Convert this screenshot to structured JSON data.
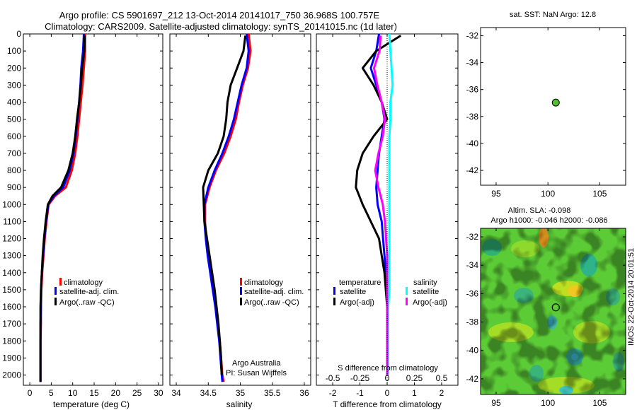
{
  "header": {
    "title_line1": "Argo profile: CS 5901697_212 13-Oct-2014 20141017_750 36.968S 100.757E",
    "title_line2": "Climatology: CARS2009. Satellite-adjusted climatology: synTS_20141015.nc (1d later)"
  },
  "colors": {
    "climatology": "#ff0000",
    "satellite": "#0000ff",
    "argo": "#000000",
    "salinity_satellite": "#00ffff",
    "salinity_argo": "#ff00ff",
    "float_marker": "#4fc12a"
  },
  "depth_axis": {
    "ticks": [
      0,
      100,
      200,
      300,
      400,
      500,
      600,
      700,
      800,
      900,
      1000,
      1100,
      1200,
      1300,
      1400,
      1500,
      1600,
      1700,
      1800,
      1900,
      2000
    ],
    "lim": [
      0,
      2060
    ]
  },
  "panels": {
    "temperature": {
      "xlabel": "temperature (deg C)",
      "xticks": [
        "0",
        "5",
        "10",
        "15",
        "20",
        "25",
        "30"
      ],
      "legend": [
        "climatology",
        "satellite-adj. clim.",
        "Argo(..raw -QC)"
      ]
    },
    "salinity": {
      "xlabel": "salinity",
      "xticks": [
        "34",
        "34.5",
        "35",
        "35.5",
        "36"
      ],
      "legend": [
        "climatology",
        "satellite-adj. clim.",
        "Argo(..raw -QC)"
      ],
      "note_line1": "Argo Australia",
      "note_line2": "PI: Susan Wijffels"
    },
    "difference": {
      "xlabel": "T difference from climatology",
      "top_label": "S difference from climatology",
      "xticks_T": [
        "-2",
        "-1",
        "0",
        "1",
        "2"
      ],
      "xticks_S": [
        "-0.5",
        "-0.25",
        "0",
        "0.25",
        "0.5"
      ],
      "legend_temp_heading": "temperature",
      "legend_sal_heading": "salinity",
      "legend_temp": [
        "satellite",
        "Argo(-adj)"
      ],
      "legend_sal": [
        "satellite",
        "Argo(-adj)"
      ]
    },
    "sst_map": {
      "title": "sat. SST: NaN Argo: 12.8",
      "yticks": [
        "-32",
        "-34",
        "-36",
        "-38",
        "-40",
        "-42"
      ],
      "xticks": [
        "95",
        "100",
        "105"
      ]
    },
    "sla_map": {
      "title_line1": "Altim. SLA: -0.098",
      "title_line2": "Argo h1000: -0.046 h2000: -0.086",
      "yticks": [
        "-32",
        "-34",
        "-36",
        "-38",
        "-40",
        "-42"
      ],
      "xticks": [
        "95",
        "100",
        "105"
      ],
      "credit": "IMOS 22-Oct-2014 20:01:51"
    }
  },
  "chart_data": [
    {
      "type": "line",
      "title": "",
      "xlabel": "temperature (deg C)",
      "ylabel": "",
      "xlim": [
        -1.5,
        31
      ],
      "ylim": [
        2060,
        0
      ],
      "series": [
        {
          "name": "climatology",
          "color": "#ff0000",
          "x": [
            12.9,
            12.9,
            12.6,
            12.3,
            11.9,
            11.5,
            11.1,
            10.6,
            9.8,
            8.4,
            5.9,
            4.4,
            3.9,
            3.5,
            3.2,
            2.9,
            2.7,
            2.6,
            2.6,
            2.5,
            2.5,
            2.5
          ],
          "y": [
            0,
            100,
            200,
            300,
            400,
            500,
            600,
            700,
            800,
            900,
            950,
            1000,
            1100,
            1200,
            1300,
            1400,
            1500,
            1600,
            1700,
            1800,
            1900,
            2040
          ]
        },
        {
          "name": "satellite-adj. clim.",
          "color": "#0000ff",
          "x": [
            12.6,
            12.4,
            12.0,
            11.8,
            11.5,
            11.1,
            10.7,
            10.2,
            9.3,
            7.8,
            5.6,
            4.3,
            3.8,
            3.4,
            3.1,
            2.8,
            2.6,
            2.6,
            2.5,
            2.5,
            2.5,
            2.5
          ],
          "y": [
            0,
            100,
            200,
            300,
            400,
            500,
            600,
            700,
            800,
            900,
            950,
            1000,
            1100,
            1200,
            1300,
            1400,
            1500,
            1600,
            1700,
            1800,
            1900,
            2040
          ]
        },
        {
          "name": "Argo(..raw -QC)",
          "color": "#000000",
          "x": [
            12.8,
            12.7,
            12.2,
            11.9,
            11.5,
            11.0,
            10.6,
            10.0,
            9.0,
            7.3,
            5.3,
            4.2,
            3.7,
            3.3,
            3.0,
            2.8,
            2.6,
            2.5,
            2.5,
            2.5,
            2.5,
            2.5
          ],
          "y": [
            10,
            100,
            200,
            300,
            400,
            500,
            600,
            700,
            800,
            900,
            950,
            1000,
            1100,
            1200,
            1300,
            1400,
            1500,
            1600,
            1700,
            1800,
            1900,
            2040
          ]
        }
      ]
    },
    {
      "type": "line",
      "title": "",
      "xlabel": "salinity",
      "ylabel": "",
      "xlim": [
        33.9,
        36.1
      ],
      "ylim": [
        2060,
        0
      ],
      "series": [
        {
          "name": "climatology",
          "color": "#ff0000",
          "x": [
            35.13,
            35.16,
            35.12,
            35.04,
            34.98,
            34.93,
            34.85,
            34.75,
            34.62,
            34.52,
            34.45,
            34.45,
            34.47,
            34.5,
            34.54,
            34.58,
            34.62,
            34.65,
            34.68,
            34.7,
            34.72,
            34.74
          ],
          "y": [
            0,
            100,
            200,
            300,
            400,
            500,
            600,
            700,
            800,
            900,
            1000,
            1100,
            1200,
            1300,
            1400,
            1500,
            1600,
            1700,
            1800,
            1900,
            2000,
            2040
          ]
        },
        {
          "name": "satellite-adj. clim.",
          "color": "#0000ff",
          "x": [
            35.1,
            35.13,
            35.1,
            35.02,
            34.96,
            34.9,
            34.82,
            34.72,
            34.6,
            34.5,
            34.44,
            34.44,
            34.46,
            34.49,
            34.53,
            34.57,
            34.61,
            34.64,
            34.67,
            34.69,
            34.71,
            34.72
          ],
          "y": [
            0,
            100,
            200,
            300,
            400,
            500,
            600,
            700,
            800,
            900,
            1000,
            1100,
            1200,
            1300,
            1400,
            1500,
            1600,
            1700,
            1800,
            1900,
            2000,
            2040
          ]
        },
        {
          "name": "Argo(..raw -QC)",
          "color": "#000000",
          "x": [
            35.08,
            35.05,
            34.95,
            34.85,
            34.8,
            34.78,
            34.74,
            34.65,
            34.5,
            34.42,
            34.43,
            34.44,
            34.48,
            34.52,
            34.56,
            34.6,
            34.63,
            34.66,
            34.68,
            34.7,
            34.71
          ],
          "y": [
            10,
            100,
            200,
            300,
            400,
            500,
            600,
            700,
            800,
            900,
            1000,
            1100,
            1200,
            1300,
            1400,
            1500,
            1600,
            1700,
            1800,
            1900,
            2000
          ]
        }
      ]
    },
    {
      "type": "line",
      "title": "",
      "xlabel": "T difference from climatology",
      "ylabel": "",
      "xlim": [
        -2.6,
        2.6
      ],
      "ylim": [
        2060,
        0
      ],
      "series": [
        {
          "name": "temperature satellite",
          "color": "#0000ff",
          "x": [
            -0.3,
            -0.4,
            -0.6,
            -0.4,
            -0.2,
            -0.1,
            -0.2,
            -0.3,
            -0.35,
            -0.4,
            -0.35,
            -0.2,
            -0.15,
            -0.1,
            -0.05,
            0,
            0,
            0,
            0,
            0,
            0
          ],
          "y": [
            0,
            100,
            200,
            300,
            400,
            500,
            600,
            700,
            800,
            900,
            1000,
            1100,
            1200,
            1300,
            1400,
            1500,
            1600,
            1700,
            1800,
            1900,
            2000
          ]
        },
        {
          "name": "temperature Argo(-adj)",
          "color": "#000000",
          "x": [
            0.5,
            -0.4,
            -0.9,
            -0.5,
            -0.2,
            0,
            -0.5,
            -0.9,
            -1.1,
            -1.15,
            -0.9,
            -0.6,
            -0.3,
            -0.2,
            -0.1,
            -0.05,
            0,
            0,
            0,
            0,
            0
          ],
          "y": [
            10,
            100,
            200,
            300,
            400,
            500,
            600,
            700,
            800,
            900,
            1000,
            1100,
            1200,
            1300,
            1400,
            1500,
            1600,
            1700,
            1800,
            1900,
            2000
          ]
        },
        {
          "name": "salinity satellite",
          "color": "#00ffff",
          "x": [
            0.02,
            0.03,
            0.04,
            0.05,
            0.03,
            0.03,
            0.02,
            0.02,
            0.02,
            0.02,
            0.02,
            0.02,
            0.02,
            0.02,
            0.02,
            0.02,
            0.01,
            0.01,
            0.01,
            0.01,
            0.01
          ],
          "y": [
            0,
            100,
            200,
            300,
            400,
            500,
            600,
            700,
            800,
            900,
            1000,
            1100,
            1200,
            1300,
            1400,
            1500,
            1600,
            1700,
            1800,
            1900,
            2000
          ]
        },
        {
          "name": "salinity Argo(-adj)",
          "color": "#ff00ff",
          "x": [
            -0.06,
            -0.07,
            -0.12,
            -0.09,
            -0.05,
            -0.02,
            -0.04,
            -0.08,
            -0.11,
            -0.08,
            -0.04,
            -0.02,
            -0.01,
            0,
            0,
            0,
            0,
            0,
            0,
            0,
            0
          ],
          "y": [
            10,
            100,
            200,
            300,
            400,
            500,
            600,
            700,
            800,
            900,
            1000,
            1100,
            1200,
            1300,
            1400,
            1500,
            1600,
            1700,
            1800,
            1900,
            2000
          ]
        }
      ]
    },
    {
      "type": "scatter",
      "title": "sat. SST: NaN Argo: 12.8",
      "xlim": [
        93.5,
        107.5
      ],
      "ylim": [
        -43.1,
        -31.4
      ],
      "points": [
        {
          "x": 100.757,
          "y": -36.968
        }
      ]
    },
    {
      "type": "heatmap",
      "title": "Altim. SLA: -0.098",
      "xlim": [
        93.5,
        107.5
      ],
      "ylim": [
        -43.1,
        -31.4
      ],
      "points": [
        {
          "x": 100.757,
          "y": -36.968
        }
      ]
    }
  ]
}
